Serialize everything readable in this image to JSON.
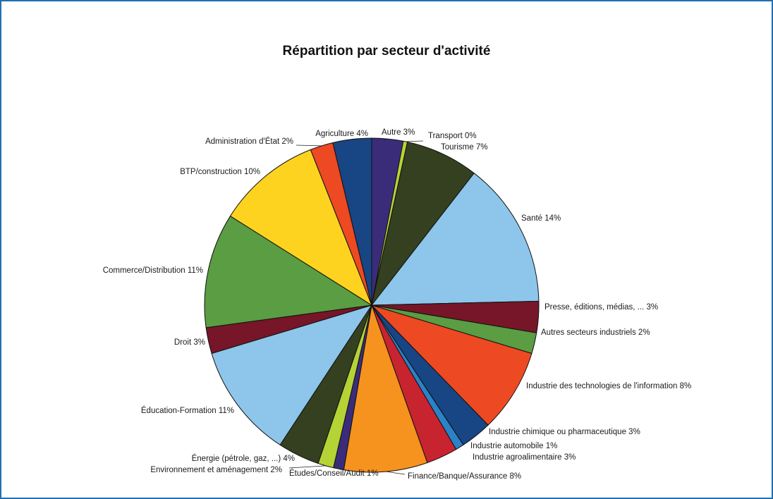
{
  "chart_data": {
    "type": "pie",
    "title": "Répartition par secteur d'activité",
    "slices": [
      {
        "label": "Autre",
        "value": 3,
        "display": "Autre 3%",
        "color": "#3b2c7a"
      },
      {
        "label": "Transport",
        "value": 0.4,
        "display": "Transport 0%",
        "color": "#b5d334"
      },
      {
        "label": "Tourisme",
        "value": 7,
        "display": "Tourisme 7%",
        "color": "#344020"
      },
      {
        "label": "Santé",
        "value": 14,
        "display": "Santé 14%",
        "color": "#8ec5ea"
      },
      {
        "label": "Presse, éditions, médias, ...",
        "value": 3,
        "display": "Presse, éditions, médias, ... 3%",
        "color": "#761628"
      },
      {
        "label": "Autres secteurs industriels",
        "value": 2,
        "display": "Autres secteurs industriels 2%",
        "color": "#5a9d42"
      },
      {
        "label": "Industrie des technologies de l'information",
        "value": 8,
        "display": "Industrie des technologies de l'information 8%",
        "color": "#ed4923"
      },
      {
        "label": "Industrie chimique ou pharmaceutique",
        "value": 3,
        "display": "Industrie chimique ou pharmaceutique 3%",
        "color": "#184584"
      },
      {
        "label": "Industrie automobile",
        "value": 0.8,
        "display": "Industrie automobile 1%",
        "color": "#2b82c6"
      },
      {
        "label": "Industrie agroalimentaire",
        "value": 3,
        "display": "Industrie agroalimentaire 3%",
        "color": "#c7242f"
      },
      {
        "label": "Finance/Banque/Assurance",
        "value": 8,
        "display": "Finance/Banque/Assurance 8%",
        "color": "#f6921e"
      },
      {
        "label": "Études/Conseil/Audit",
        "value": 1,
        "display": "Études/Conseil/Audit 1%",
        "color": "#3b2c7a"
      },
      {
        "label": "Environnement et aménagement",
        "value": 1.5,
        "display": "Environnement et aménagement 2%",
        "color": "#b5d334"
      },
      {
        "label": "Énergie (pétrole, gaz, ...)",
        "value": 4,
        "display": "Énergie (pétrole, gaz, ...) 4%",
        "color": "#344020"
      },
      {
        "label": "Éducation-Formation",
        "value": 11,
        "display": "Éducation-Formation 11%",
        "color": "#8ec5ea"
      },
      {
        "label": "Droit",
        "value": 2.5,
        "display": "Droit 3%",
        "color": "#761628"
      },
      {
        "label": "Commerce/Distribution",
        "value": 11,
        "display": "Commerce/Distribution 11%",
        "color": "#5a9d42"
      },
      {
        "label": "BTP/construction",
        "value": 10,
        "display": "BTP/construction 10%",
        "color": "#fdd320"
      },
      {
        "label": "Administration d'État",
        "value": 2.2,
        "display": "Administration d'État 2%",
        "color": "#ed4923"
      },
      {
        "label": "Agriculture",
        "value": 3.7,
        "display": "Agriculture 4%",
        "color": "#184584"
      }
    ]
  }
}
